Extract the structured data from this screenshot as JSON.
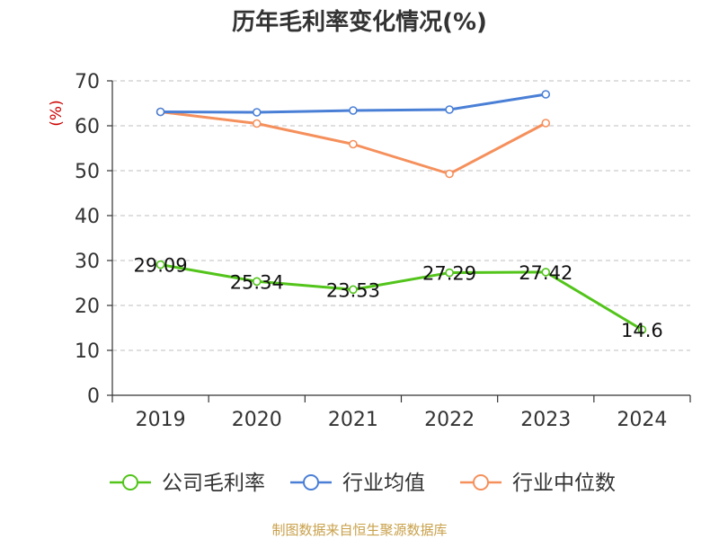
{
  "chart_data": {
    "type": "line",
    "title": "历年毛利率变化情况(%)",
    "ylabel": "(%)",
    "xlabel": "",
    "categories": [
      "2019",
      "2020",
      "2021",
      "2022",
      "2023",
      "2024"
    ],
    "ylim": [
      0,
      70
    ],
    "yticks": [
      0,
      10,
      20,
      30,
      40,
      50,
      60,
      70
    ],
    "grid": true,
    "legend_position": "bottom",
    "series": [
      {
        "name": "公司毛利率",
        "color": "#52c41a",
        "values": [
          29.09,
          25.34,
          23.53,
          27.29,
          27.42,
          14.6
        ],
        "labels": [
          "29.09",
          "25.34",
          "23.53",
          "27.29",
          "27.42",
          "14.6"
        ]
      },
      {
        "name": "行业均值",
        "color": "#4a7fd6",
        "values": [
          63.1,
          63.0,
          63.4,
          63.6,
          67.0,
          null
        ]
      },
      {
        "name": "行业中位数",
        "color": "#f5905c",
        "values": [
          63.1,
          60.5,
          55.9,
          49.3,
          60.6,
          null
        ]
      }
    ]
  },
  "source": "制图数据来自恒生聚源数据库"
}
